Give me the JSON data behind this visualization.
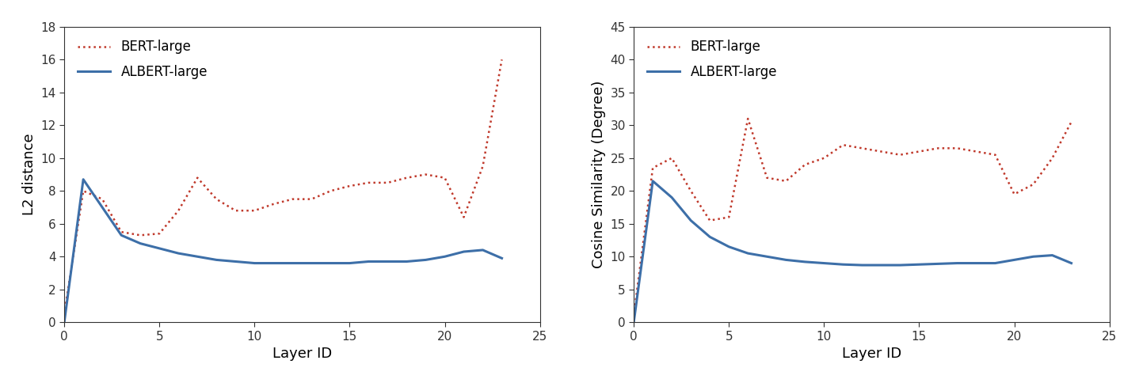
{
  "left_chart": {
    "title": "",
    "xlabel": "Layer ID",
    "ylabel": "L2 distance",
    "xlim": [
      0,
      24
    ],
    "ylim": [
      0,
      18
    ],
    "xticks": [
      0,
      5,
      10,
      15,
      20,
      25
    ],
    "yticks": [
      0,
      2,
      4,
      6,
      8,
      10,
      12,
      14,
      16,
      18
    ],
    "bert_x": [
      0,
      1,
      2,
      3,
      4,
      5,
      6,
      7,
      8,
      9,
      10,
      11,
      12,
      13,
      14,
      15,
      16,
      17,
      18,
      19,
      20,
      21,
      22,
      23
    ],
    "bert_y": [
      0.5,
      8.0,
      7.5,
      5.5,
      5.3,
      5.4,
      6.8,
      8.8,
      7.5,
      6.8,
      6.8,
      7.2,
      7.5,
      7.5,
      8.0,
      8.3,
      8.5,
      8.5,
      8.8,
      9.0,
      8.8,
      6.4,
      9.5,
      16.0
    ],
    "albert_x": [
      0,
      1,
      2,
      3,
      4,
      5,
      6,
      7,
      8,
      9,
      10,
      11,
      12,
      13,
      14,
      15,
      16,
      17,
      18,
      19,
      20,
      21,
      22,
      23
    ],
    "albert_y": [
      0.0,
      8.7,
      7.0,
      5.3,
      4.8,
      4.5,
      4.2,
      4.0,
      3.8,
      3.7,
      3.6,
      3.6,
      3.6,
      3.6,
      3.6,
      3.6,
      3.7,
      3.7,
      3.7,
      3.8,
      4.0,
      4.3,
      4.4,
      3.9
    ]
  },
  "right_chart": {
    "title": "",
    "xlabel": "Layer ID",
    "ylabel": "Cosine Similarity (Degree)",
    "xlim": [
      0,
      24
    ],
    "ylim": [
      0,
      45
    ],
    "xticks": [
      0,
      5,
      10,
      15,
      20,
      25
    ],
    "yticks": [
      0,
      5,
      10,
      15,
      20,
      25,
      30,
      35,
      40,
      45
    ],
    "bert_x": [
      0,
      1,
      2,
      3,
      4,
      5,
      6,
      7,
      8,
      9,
      10,
      11,
      12,
      13,
      14,
      15,
      16,
      17,
      18,
      19,
      20,
      21,
      22,
      23
    ],
    "bert_y": [
      1.0,
      23.5,
      25.0,
      20.0,
      15.5,
      16.0,
      31.0,
      22.0,
      21.5,
      24.0,
      25.0,
      27.0,
      26.5,
      26.0,
      25.5,
      26.0,
      26.5,
      26.5,
      26.0,
      25.5,
      19.5,
      21.0,
      25.0,
      30.5
    ],
    "albert_x": [
      0,
      1,
      2,
      3,
      4,
      5,
      6,
      7,
      8,
      9,
      10,
      11,
      12,
      13,
      14,
      15,
      16,
      17,
      18,
      19,
      20,
      21,
      22,
      23
    ],
    "albert_y": [
      0.0,
      21.5,
      19.0,
      15.5,
      13.0,
      11.5,
      10.5,
      10.0,
      9.5,
      9.2,
      9.0,
      8.8,
      8.7,
      8.7,
      8.7,
      8.8,
      8.9,
      9.0,
      9.0,
      9.0,
      9.5,
      10.0,
      10.2,
      9.0
    ]
  },
  "bert_color": "#c0392b",
  "albert_color": "#3d6fa8",
  "bert_label": "BERT-large",
  "albert_label": "ALBERT-large",
  "legend_fontsize": 12,
  "axis_label_fontsize": 13,
  "tick_fontsize": 11,
  "bg_color": "#ffffff",
  "fig_bg_color": "#ffffff",
  "bert_linewidth": 1.8,
  "albert_linewidth": 2.2
}
